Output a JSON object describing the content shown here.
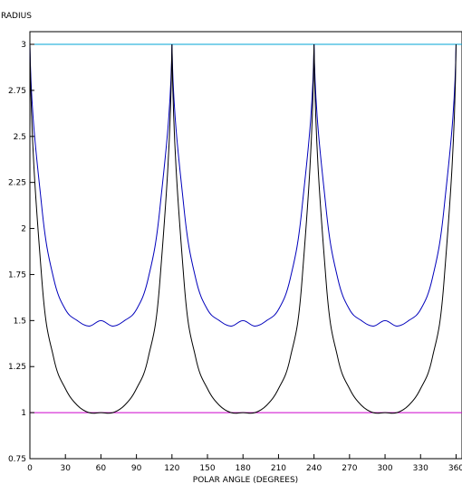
{
  "chart_data": {
    "type": "line",
    "title": "",
    "xlabel": "POLAR ANGLE (DEGREES)",
    "ylabel": "RADIUS",
    "xlim": [
      0,
      365
    ],
    "ylim": [
      0.75,
      3.1
    ],
    "x_ticks": [
      0,
      30,
      60,
      90,
      120,
      150,
      180,
      210,
      240,
      270,
      300,
      330,
      360
    ],
    "y_ticks": [
      {
        "value": 0.75,
        "label": "0.75"
      },
      {
        "value": 1,
        "label": "1"
      },
      {
        "value": 1.25,
        "label": "1.25"
      },
      {
        "value": 1.5,
        "label": "1.5"
      },
      {
        "value": 1.75,
        "label": "1.75"
      },
      {
        "value": 2,
        "label": "2"
      },
      {
        "value": 2.25,
        "label": "2.25"
      },
      {
        "value": 2.5,
        "label": "2.5"
      },
      {
        "value": 2.75,
        "label": "2.75"
      },
      {
        "value": 3,
        "label": "3"
      }
    ],
    "grid": false,
    "series": [
      {
        "color": "#00a6d6",
        "x": [
          0,
          365
        ],
        "y": [
          3,
          3
        ]
      },
      {
        "color": "#cc00cc",
        "x": [
          0,
          365
        ],
        "y": [
          1,
          1
        ]
      },
      {
        "color": "#0000bb",
        "x": [
          0,
          10,
          20,
          30,
          40,
          50,
          60,
          70,
          80,
          90,
          100,
          110,
          120,
          130,
          140,
          150,
          160,
          170,
          180,
          190,
          200,
          210,
          220,
          230,
          240,
          250,
          260,
          270,
          280,
          290,
          300,
          310,
          320,
          330,
          340,
          350,
          360
        ],
        "y": [
          3.0,
          2.12,
          1.73,
          1.56,
          1.5,
          1.47,
          1.5,
          1.47,
          1.5,
          1.56,
          1.73,
          2.12,
          3.0,
          2.12,
          1.73,
          1.56,
          1.5,
          1.47,
          1.5,
          1.47,
          1.5,
          1.56,
          1.73,
          2.12,
          3.0,
          2.12,
          1.73,
          1.56,
          1.5,
          1.47,
          1.5,
          1.47,
          1.5,
          1.56,
          1.73,
          2.12,
          3.0
        ]
      },
      {
        "color": "#000000",
        "x": [
          0,
          10,
          20,
          30,
          40,
          50,
          60,
          70,
          80,
          90,
          100,
          110,
          120,
          130,
          140,
          150,
          160,
          170,
          180,
          190,
          200,
          210,
          220,
          230,
          240,
          250,
          260,
          270,
          280,
          290,
          300,
          310,
          320,
          330,
          340,
          350,
          360
        ],
        "y": [
          3.0,
          1.73,
          1.3,
          1.13,
          1.04,
          1.0,
          1.0,
          1.0,
          1.04,
          1.13,
          1.3,
          1.73,
          3.0,
          1.73,
          1.3,
          1.13,
          1.04,
          1.0,
          1.0,
          1.0,
          1.04,
          1.13,
          1.3,
          1.73,
          3.0,
          1.73,
          1.3,
          1.13,
          1.04,
          1.0,
          1.0,
          1.0,
          1.04,
          1.13,
          1.3,
          1.73,
          3.0
        ]
      }
    ]
  }
}
